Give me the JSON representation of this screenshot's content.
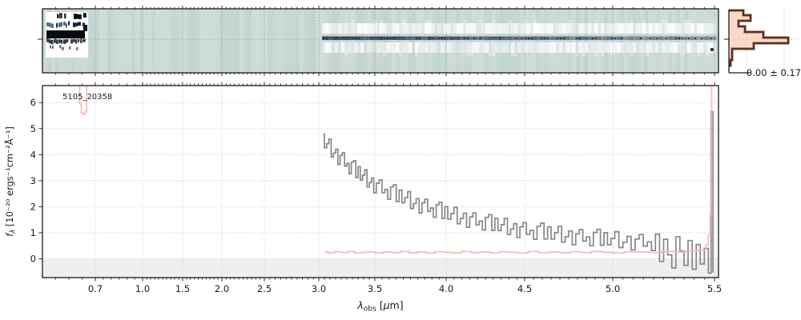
{
  "figure": {
    "bg": "#ffffff"
  },
  "title_label": "5105_20358",
  "panel_2d": {
    "bg": "#cbdad6",
    "trace_color": "#32465c",
    "trace_dark": "#1d2d40",
    "blob_color": "#0a0a0a",
    "grid_color": "#8f8f8f",
    "seed": 1337
  },
  "histogram": {
    "annotation": "0.00 ± 0.17",
    "fill": "#f8d6c8",
    "edge_dark": "#45291f",
    "edge_light": "#a86b50",
    "grid_color": "#bbbbbb",
    "bins": [
      [
        13,
        19,
        18
      ],
      [
        19,
        26,
        27
      ],
      [
        26,
        33,
        12
      ],
      [
        33,
        40,
        20
      ],
      [
        40,
        47,
        43
      ],
      [
        47,
        54,
        74
      ],
      [
        54,
        61,
        31
      ],
      [
        61,
        75,
        4
      ],
      [
        75,
        82,
        2
      ]
    ],
    "vlines": [
      22,
      69
    ]
  },
  "chart_data": {
    "type": "line",
    "title": "5105_20358",
    "xlabel": "λ_obs [μm]",
    "ylabel": "f_λ [10⁻²⁰ ergs⁻¹cm⁻²Å⁻¹]",
    "xlabel_parts": {
      "sym": "λ",
      "sub": "obs",
      "pre": " [",
      "mu": "μ",
      "post": "m]"
    },
    "ylabel_parts": {
      "f": "f",
      "sub": "λ",
      "rest": " [10⁻²⁰ ergs⁻¹cm⁻²Å⁻¹]"
    },
    "xlim": [
      0.5,
      5.53
    ],
    "ylim": [
      -0.72,
      6.65
    ],
    "grid": "dotted",
    "grid_color": "#c9c9c9",
    "below_zero_shade": "#efefef",
    "x_ticks": [
      0.7,
      1.0,
      1.5,
      2.0,
      2.5,
      3.0,
      3.5,
      4.0,
      4.5,
      5.0,
      5.5
    ],
    "x_tick_labels": [
      "0.7",
      "1.0",
      "1.5",
      "2.0",
      "2.5",
      "3.0",
      "3.5",
      "4.0",
      "4.5",
      "5.0",
      "5.5"
    ],
    "x_minor_step": 0.05,
    "y_ticks": [
      0,
      1,
      2,
      3,
      4,
      5,
      6
    ],
    "y_tick_labels": [
      "0",
      "1",
      "2",
      "3",
      "4",
      "5",
      "6"
    ],
    "x_scale_anchors": [
      [
        0.5,
        0.0
      ],
      [
        0.7,
        0.0782
      ],
      [
        1.0,
        0.1481
      ],
      [
        1.5,
        0.2073
      ],
      [
        2.0,
        0.2654
      ],
      [
        2.5,
        0.3282
      ],
      [
        3.0,
        0.4088
      ],
      [
        3.5,
        0.4917
      ],
      [
        4.0,
        0.5972
      ],
      [
        4.5,
        0.7133
      ],
      [
        5.0,
        0.8436
      ],
      [
        5.5,
        0.9941
      ],
      [
        5.53,
        1.0
      ]
    ],
    "series": [
      {
        "name": "flux",
        "color": "#878787",
        "width": 1.7,
        "style": "steps",
        "lam0": 3.04,
        "dlam": 0.02,
        "values": [
          4.8,
          4.26,
          4.42,
          4.6,
          3.91,
          4.06,
          4.21,
          3.62,
          3.97,
          4.07,
          3.56,
          3.66,
          3.27,
          3.71,
          3.77,
          3.12,
          3.54,
          3.02,
          3.21,
          3.42,
          2.76,
          2.93,
          3.1,
          2.53,
          2.9,
          3.03,
          2.54,
          2.66,
          2.29,
          2.76,
          2.84,
          2.2,
          2.64,
          2.15,
          2.35,
          2.58,
          1.93,
          2.12,
          2.31,
          1.76,
          2.15,
          2.29,
          1.82,
          1.95,
          1.59,
          2.08,
          2.17,
          1.55,
          2.0,
          1.52,
          1.74,
          1.98,
          1.35,
          1.55,
          1.75,
          1.21,
          1.61,
          1.76,
          1.3,
          1.45,
          1.1,
          1.59,
          1.7,
          1.09,
          1.55,
          1.08,
          1.31,
          1.55,
          0.93,
          1.14,
          1.35,
          0.82,
          1.23,
          1.39,
          0.94,
          1.09,
          0.75,
          1.25,
          1.37,
          0.76,
          1.23,
          0.76,
          1.0,
          1.25,
          0.64,
          0.85,
          1.07,
          0.54,
          0.96,
          1.12,
          0.68,
          0.84,
          0.5,
          1.01,
          1.13,
          0.52,
          1.0,
          0.54,
          0.78,
          1.04,
          0.43,
          0.64,
          0.86,
          0.34,
          0.76,
          0.93,
          0.49,
          0.65,
          0.32,
          0.95,
          -0.1,
          0.75,
          0.15,
          -0.35,
          0.85,
          0.3,
          -0.25,
          0.7,
          -0.4,
          0.55,
          -0.2,
          0.4,
          -0.55
        ],
        "extra": [
          [
            5.487,
            5.66
          ],
          [
            5.497,
            -0.5
          ]
        ]
      },
      {
        "name": "error",
        "color": "#f5b9b4",
        "width": 1.7,
        "style": "steps",
        "lam0": 3.05,
        "dlam": 0.06,
        "values": [
          0.26,
          0.23,
          0.27,
          0.24,
          0.28,
          0.22,
          0.25,
          0.27,
          0.23,
          0.26,
          0.24,
          0.28,
          0.23,
          0.26,
          0.22,
          0.27,
          0.25,
          0.23,
          0.28,
          0.24,
          0.26,
          0.23,
          0.27,
          0.25,
          0.22,
          0.28,
          0.24,
          0.26,
          0.23,
          0.27,
          0.24,
          0.28,
          0.25,
          0.23,
          0.27,
          0.26,
          0.24,
          0.28,
          0.26,
          0.3,
          0.34
        ],
        "extra": [
          [
            5.465,
            0.55
          ],
          [
            5.475,
            0.9
          ],
          [
            5.482,
            1.7
          ],
          [
            5.49,
            7.2
          ]
        ]
      },
      {
        "name": "error_blue_end",
        "color": "#f5b9b4",
        "width": 1.7,
        "style": "steps",
        "points": [
          [
            0.638,
            7.2
          ],
          [
            0.644,
            5.95
          ],
          [
            0.65,
            5.6
          ],
          [
            0.658,
            5.55
          ],
          [
            0.664,
            5.65
          ],
          [
            0.67,
            7.2
          ]
        ]
      }
    ]
  }
}
